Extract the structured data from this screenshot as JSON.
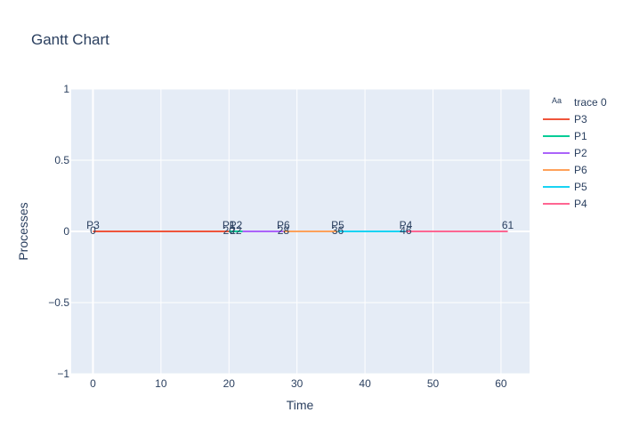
{
  "chart_data": {
    "type": "line",
    "title": "Gantt Chart",
    "xlabel": "Time",
    "ylabel": "Processes",
    "xlim": [
      -3.2,
      64.2
    ],
    "ylim": [
      -1,
      1
    ],
    "x_ticks": [
      "0",
      "10",
      "20",
      "30",
      "40",
      "50",
      "60"
    ],
    "y_ticks": [
      "1",
      "0.5",
      "0",
      "−0.5",
      "−1"
    ],
    "grid": true,
    "legend_position": "top-right",
    "legend_text_entry": "trace 0",
    "legend_text_symbol": "Aa",
    "series": [
      {
        "name": "P3",
        "x": [
          0,
          20
        ],
        "y": [
          0,
          0
        ],
        "color": "#EF553B"
      },
      {
        "name": "P1",
        "x": [
          20,
          22
        ],
        "y": [
          0,
          0
        ],
        "color": "#00CC96"
      },
      {
        "name": "P2",
        "x": [
          22,
          28
        ],
        "y": [
          0,
          0
        ],
        "color": "#AB63FA"
      },
      {
        "name": "P6",
        "x": [
          28,
          36
        ],
        "y": [
          0,
          0
        ],
        "color": "#FFA15A"
      },
      {
        "name": "P5",
        "x": [
          36,
          46
        ],
        "y": [
          0,
          0
        ],
        "color": "#19D3F3"
      },
      {
        "name": "P4",
        "x": [
          46,
          61
        ],
        "y": [
          0,
          0
        ],
        "color": "#FF6692"
      }
    ],
    "annotations": [
      {
        "x": 0,
        "label": "P3",
        "time": "0"
      },
      {
        "x": 20,
        "label": "P1",
        "time": "20"
      },
      {
        "x": 21,
        "label": "P2",
        "time": "22"
      },
      {
        "x": 28,
        "label": "P6",
        "time": "28"
      },
      {
        "x": 36,
        "label": "P5",
        "time": "36"
      },
      {
        "x": 46,
        "label": "P4",
        "time": "46"
      },
      {
        "x": 61,
        "label": "",
        "time": "61"
      }
    ]
  }
}
